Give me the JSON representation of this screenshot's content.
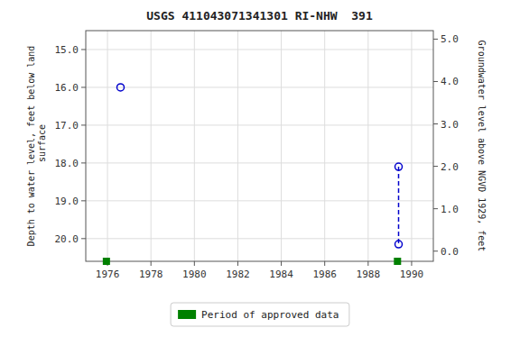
{
  "chart_data": {
    "type": "scatter",
    "title": "USGS 411043071341301 RI-NHW  391",
    "ylabel": "Depth to water level, feet below land\n surface",
    "y2label": "Groundwater level above NGVD 1929, feet",
    "xlim": [
      1975.0,
      1991.0
    ],
    "xticks": [
      1976,
      1978,
      1980,
      1982,
      1984,
      1986,
      1988,
      1990
    ],
    "ylim": [
      20.6,
      14.5
    ],
    "yticks": [
      {
        "value": 15.0,
        "label": "15.0"
      },
      {
        "value": 16.0,
        "label": "16.0"
      },
      {
        "value": 17.0,
        "label": "17.0"
      },
      {
        "value": 18.0,
        "label": "18.0"
      },
      {
        "value": 19.0,
        "label": "19.0"
      },
      {
        "value": 20.0,
        "label": "20.0"
      }
    ],
    "y2lim": [
      -0.24,
      5.2
    ],
    "y2ticks": [
      {
        "value": 0.0,
        "label": "0.0"
      },
      {
        "value": 1.0,
        "label": "1.0"
      },
      {
        "value": 2.0,
        "label": "2.0"
      },
      {
        "value": 3.0,
        "label": "3.0"
      },
      {
        "value": 4.0,
        "label": "4.0"
      },
      {
        "value": 5.0,
        "label": "5.0"
      }
    ],
    "grid": true,
    "legend": "bottom",
    "series": [
      {
        "type": "scatter",
        "marker": "circle",
        "color": "#0000cc",
        "x": [
          1976.6,
          1989.4,
          1989.4
        ],
        "values": [
          16.0,
          18.1,
          20.15
        ]
      },
      {
        "type": "line",
        "line_style": "dashed",
        "color": "#0000cc",
        "x": [
          1989.4,
          1989.4
        ],
        "values": [
          18.1,
          20.15
        ]
      },
      {
        "name": "Period of approved data",
        "type": "scatter",
        "marker": "square",
        "color": "#008000",
        "x": [
          1975.95,
          1989.35
        ],
        "values": [
          20.6,
          20.6
        ]
      }
    ]
  }
}
